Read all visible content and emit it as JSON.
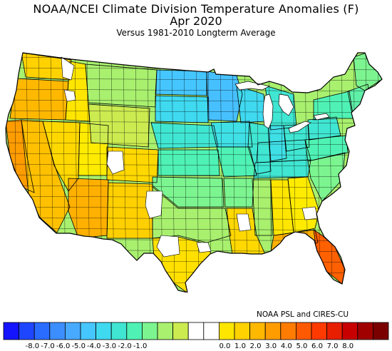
{
  "title": "NOAA/NCEI Climate Division Temperature Anomalies (F)",
  "period": "Apr 2020",
  "subtitle": "Versus 1981-2010 Longterm Average",
  "credit": "NOAA PSL and CIRES-CU",
  "legend": {
    "colors": [
      "#1414ff",
      "#1f46ff",
      "#2a6cff",
      "#3c8eff",
      "#47aaff",
      "#46c6ff",
      "#3fd9f0",
      "#40e6d2",
      "#4ff2b4",
      "#7cf590",
      "#a8f06e",
      "#cceb50",
      "#ffffff",
      "#ffffff",
      "#ffe600",
      "#ffd200",
      "#ffb800",
      "#ff9c00",
      "#ff7c00",
      "#ff5a00",
      "#ff3a00",
      "#e81e00",
      "#c80000",
      "#a00000",
      "#7a0000"
    ],
    "ticks": [
      "-8.0",
      "-7.0",
      "-6.0",
      "-5.0",
      "-4.0",
      "-3.0",
      "-2.0",
      "-1.0",
      "0.0",
      "1.0",
      "2.0",
      "3.0",
      "4.0",
      "5.0",
      "6.0",
      "7.0",
      "8.0"
    ]
  },
  "map": {
    "type": "choropleth",
    "variable": "temperature anomaly",
    "units": "F",
    "regions": [
      {
        "name": "Washington",
        "anomaly": 0.9,
        "color": "#ffd200"
      },
      {
        "name": "Oregon",
        "anomaly": 1.6,
        "color": "#ffb800"
      },
      {
        "name": "California coast",
        "anomaly": 2.8,
        "color": "#ff9c00"
      },
      {
        "name": "California interior",
        "anomaly": 1.4,
        "color": "#ffc000"
      },
      {
        "name": "Idaho",
        "anomaly": 0.6,
        "color": "#ffe600"
      },
      {
        "name": "Nevada",
        "anomaly": 0.9,
        "color": "#ffd800"
      },
      {
        "name": "Utah",
        "anomaly": 0.4,
        "color": "#ffeb00"
      },
      {
        "name": "Arizona",
        "anomaly": 1.6,
        "color": "#ffb000"
      },
      {
        "name": "Montana",
        "anomaly": -1.6,
        "color": "#a8f06e"
      },
      {
        "name": "Wyoming",
        "anomaly": -1.2,
        "color": "#cceb50"
      },
      {
        "name": "Colorado",
        "anomaly": 0.8,
        "color": "#ffd800"
      },
      {
        "name": "New Mexico",
        "anomaly": 0.8,
        "color": "#ffd000"
      },
      {
        "name": "North Dakota",
        "anomaly": -4.2,
        "color": "#46c6ff"
      },
      {
        "name": "Minnesota",
        "anomaly": -4.0,
        "color": "#47c0ff"
      },
      {
        "name": "South Dakota",
        "anomaly": -3.4,
        "color": "#3fd9f0"
      },
      {
        "name": "Nebraska",
        "anomaly": -2.6,
        "color": "#40e6d2"
      },
      {
        "name": "Kansas",
        "anomaly": -2.2,
        "color": "#4ff2b4"
      },
      {
        "name": "Oklahoma",
        "anomaly": -1.8,
        "color": "#7cf590"
      },
      {
        "name": "Texas north",
        "anomaly": -1.0,
        "color": "#a8f06e"
      },
      {
        "name": "Texas south",
        "anomaly": 1.2,
        "color": "#ffe000"
      },
      {
        "name": "Iowa",
        "anomaly": -3.2,
        "color": "#3fe0e6"
      },
      {
        "name": "Wisconsin",
        "anomaly": -3.6,
        "color": "#3fd9f0"
      },
      {
        "name": "Michigan",
        "anomaly": -3.0,
        "color": "#40e6d2"
      },
      {
        "name": "Illinois",
        "anomaly": -3.0,
        "color": "#40e6d2"
      },
      {
        "name": "Missouri",
        "anomaly": -2.6,
        "color": "#4ff2b4"
      },
      {
        "name": "Arkansas",
        "anomaly": -1.8,
        "color": "#7cf590"
      },
      {
        "name": "Louisiana",
        "anomaly": 1.0,
        "color": "#ffd800"
      },
      {
        "name": "Mississippi",
        "anomaly": -1.2,
        "color": "#a8f06e"
      },
      {
        "name": "Alabama",
        "anomaly": 0.6,
        "color": "#ffe600"
      },
      {
        "name": "Georgia",
        "anomaly": 0.4,
        "color": "#ffeb00"
      },
      {
        "name": "Florida panhandle",
        "anomaly": 2.2,
        "color": "#ffb000"
      },
      {
        "name": "Florida peninsula",
        "anomaly": 4.5,
        "color": "#ff6000"
      },
      {
        "name": "Tennessee",
        "anomaly": -2.4,
        "color": "#40e6d2"
      },
      {
        "name": "Kentucky",
        "anomaly": -2.8,
        "color": "#40e6d2"
      },
      {
        "name": "Indiana",
        "anomaly": -3.2,
        "color": "#3fdfe6"
      },
      {
        "name": "Ohio",
        "anomaly": -3.2,
        "color": "#40e6d2"
      },
      {
        "name": "Carolinas",
        "anomaly": -1.4,
        "color": "#7cf590"
      },
      {
        "name": "Virginia",
        "anomaly": -2.2,
        "color": "#4ff2b4"
      },
      {
        "name": "Pennsylvania",
        "anomaly": -2.8,
        "color": "#40e6d2"
      },
      {
        "name": "New York",
        "anomaly": -2.6,
        "color": "#4ff2b4"
      },
      {
        "name": "New England",
        "anomaly": -2.0,
        "color": "#5ff0a8"
      },
      {
        "name": "Maine",
        "anomaly": -1.6,
        "color": "#7cf590"
      }
    ]
  }
}
